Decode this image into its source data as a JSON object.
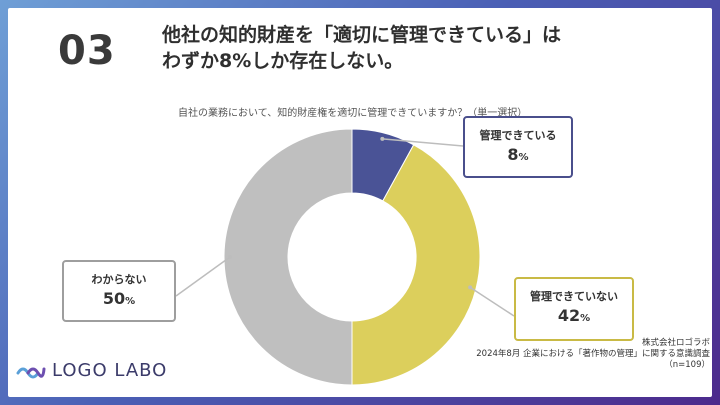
{
  "slide": {
    "number": "03",
    "title_line1": "他社の知的財産を「適切に管理できている」は",
    "title_line2": "わずか8%しか存在しない。"
  },
  "chart_data": {
    "type": "pie",
    "subtype": "donut",
    "title": "自社の業務において、知的財産権を適切に管理できていますか？（単一選択）",
    "categories": [
      "管理できている",
      "管理できていない",
      "わからない"
    ],
    "values": [
      8,
      42,
      50
    ],
    "unit": "%",
    "colors": [
      "#4a5396",
      "#dccf5c",
      "#bfbfbf"
    ]
  },
  "callouts": {
    "manage": {
      "label": "管理できている",
      "value": "8",
      "unit": "%"
    },
    "not_manage": {
      "label": "管理できていない",
      "value": "42",
      "unit": "%"
    },
    "unknown": {
      "label": "わからない",
      "value": "50",
      "unit": "%"
    }
  },
  "logo": {
    "text": "LOGO LABO"
  },
  "source": {
    "line1": "株式会社ロゴラボ",
    "line2": "2024年8月 企業における「著作物の管理」に関する意識調査",
    "line3": "（n=109）"
  }
}
